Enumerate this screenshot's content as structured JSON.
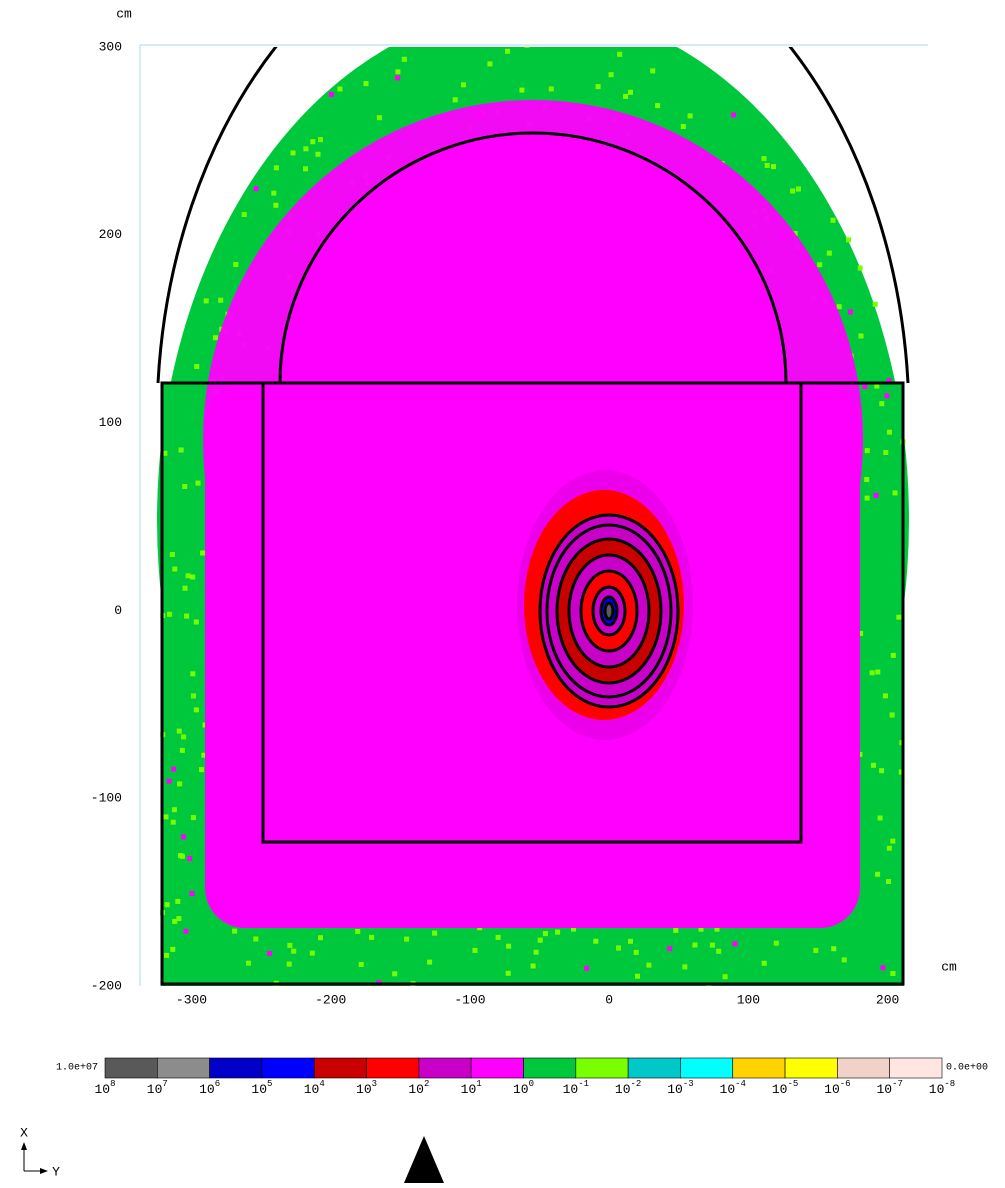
{
  "chart_data": {
    "type": "heatmap",
    "x_unit": "cm",
    "y_unit": "cm",
    "xlim": [
      -337,
      229
    ],
    "ylim": [
      -200,
      300
    ],
    "xticks": [
      -300,
      -200,
      -100,
      0,
      100,
      200
    ],
    "yticks": [
      -200,
      -100,
      0,
      100,
      200,
      300
    ],
    "colorbar": {
      "max_label": "1.0e+07",
      "min_label": "0.0e+00",
      "base": "10",
      "exponents": [
        8,
        7,
        6,
        5,
        4,
        3,
        2,
        1,
        0,
        -1,
        -2,
        -3,
        -4,
        -5,
        -6,
        -7,
        -8
      ],
      "colors": [
        "#595959",
        "#8c8c8c",
        "#0000c8",
        "#0000ff",
        "#c80000",
        "#ff0000",
        "#c800c8",
        "#ff00ff",
        "#00c83c",
        "#78ff00",
        "#00c8c8",
        "#00ffff",
        "#ffd200",
        "#ffff00",
        "#f0d2c8",
        "#ffe6e0"
      ]
    },
    "orientation": {
      "up": "X",
      "right": "Y"
    }
  }
}
